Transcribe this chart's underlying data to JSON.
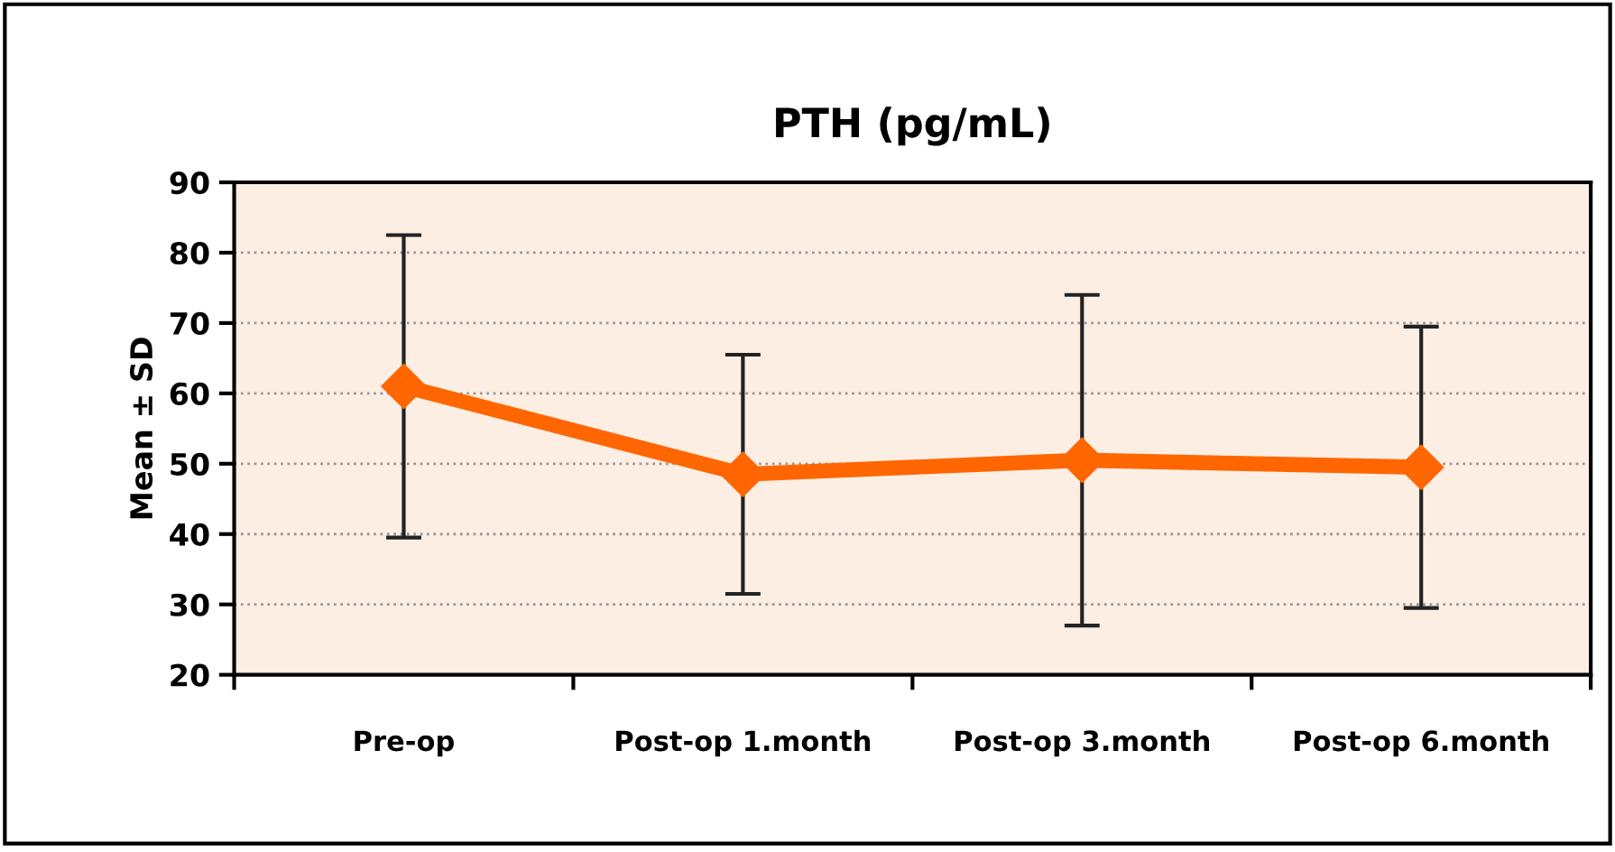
{
  "chart_data": {
    "type": "line",
    "title": "PTH (pg/mL)",
    "ylabel": "Mean ± SD",
    "categories": [
      "Pre-op",
      "Post-op 1.month",
      "Post-op 3.month",
      "Post-op 6.month"
    ],
    "series": [
      {
        "color": "#ff6600",
        "values": [
          61,
          48.5,
          50.5,
          49.5
        ],
        "errors": [
          21.5,
          17,
          23.5,
          20
        ]
      }
    ],
    "ylim": [
      20,
      90
    ],
    "yticks": [
      20,
      30,
      40,
      50,
      60,
      70,
      80,
      90
    ],
    "grid": "y",
    "marker": "diamond",
    "line_style": "solid",
    "legend": false
  }
}
